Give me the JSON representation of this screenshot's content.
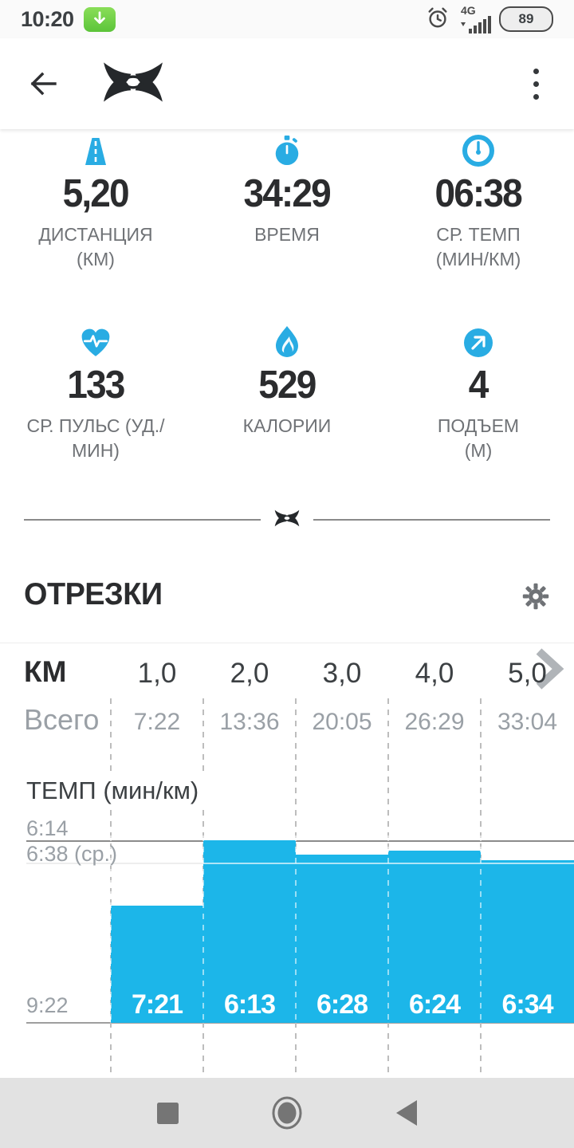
{
  "colors": {
    "accent": "#29ace3",
    "bar": "#1cb6e9",
    "text_dark": "#2b2c2e",
    "text_gray": "#6f7276",
    "table_gray": "#9aa0a6",
    "grid_dark": "#8b8b8b",
    "grid_light": "#cfcfcf",
    "nav_bg": "#e2e2e2",
    "nav_icon": "#757575",
    "badge_green": "#6ccf45"
  },
  "status_bar": {
    "time": "10:20",
    "network_type": "4G",
    "battery_level": "89",
    "icons": [
      "download-icon",
      "alarm-icon",
      "signal-icon",
      "battery-icon"
    ]
  },
  "header": {
    "icons": [
      "back-arrow-icon",
      "under-armour-logo-icon",
      "more-vert-icon"
    ]
  },
  "stats": [
    {
      "icon": "road-icon",
      "value": "5,20",
      "label": "ДИСТАНЦИЯ\n(КМ)"
    },
    {
      "icon": "stopwatch-icon",
      "value": "34:29",
      "label": "ВРЕМЯ"
    },
    {
      "icon": "gauge-icon",
      "value": "06:38",
      "label": "СР. ТЕМП\n(МИН/КМ)"
    },
    {
      "icon": "heart-rate-icon",
      "value": "133",
      "label": "СР. ПУЛЬС (УД./\nМИН)"
    },
    {
      "icon": "flame-icon",
      "value": "529",
      "label": "КАЛОРИИ"
    },
    {
      "icon": "arrow-up-right-icon",
      "value": "4",
      "label": "ПОДЪЕМ\n(М)"
    }
  ],
  "splits": {
    "title": "ОТРЕЗКИ",
    "unit_label": "КМ",
    "total_label": "Всего",
    "chart_data": {
      "type": "bar",
      "title": "ТЕМП (мин/км)",
      "categories": [
        "1,0",
        "2,0",
        "3,0",
        "4,0",
        "5,0"
      ],
      "totals": [
        "7:22",
        "13:36",
        "20:05",
        "26:29",
        "33:04"
      ],
      "series": [
        {
          "name": "ТЕМП (мин/км)",
          "values": [
            "7:21",
            "6:13",
            "6:28",
            "6:24",
            "6:34"
          ]
        }
      ],
      "y_axis": {
        "top_label": "6:14",
        "avg_label": "6:38 (ср.)",
        "bottom_label": "9:22",
        "range_seconds": [
          374,
          562
        ],
        "inverted": true,
        "grid": true
      },
      "legend": "none",
      "bar_color": "#1cb6e9"
    }
  },
  "nav_bar": {
    "icons": [
      "recents-square-icon",
      "home-circle-icon",
      "back-triangle-icon"
    ]
  }
}
